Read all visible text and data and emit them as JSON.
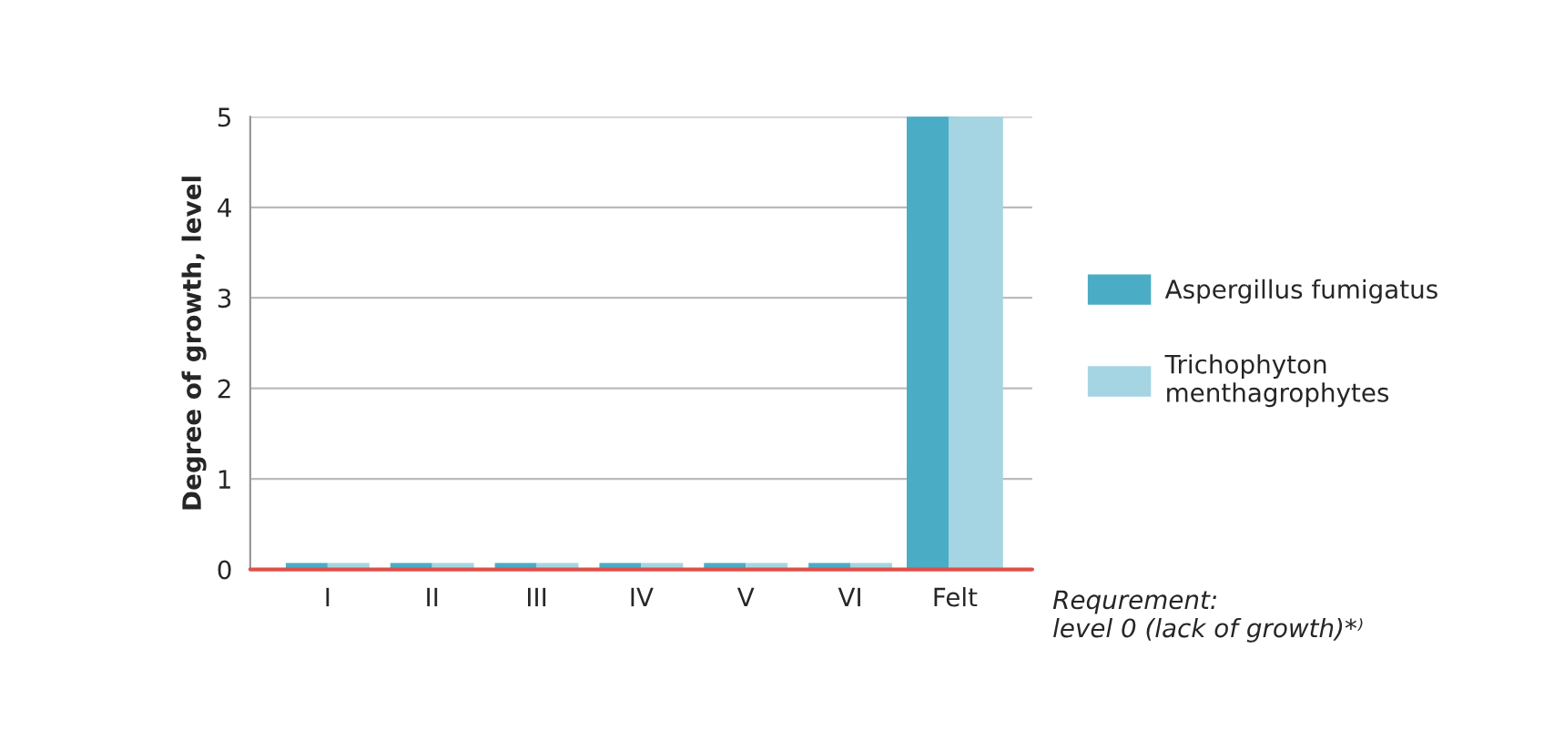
{
  "chart_data": {
    "type": "bar",
    "ylabel": "Degree of growth, level",
    "categories": [
      "I",
      "II",
      "III",
      "IV",
      "V",
      "VI",
      "Felt"
    ],
    "series": [
      {
        "name": "Aspergillus fumigatus",
        "color": "#4bacc6",
        "values": [
          0,
          0,
          0,
          0,
          0,
          0,
          5
        ]
      },
      {
        "name": "Trichophyton menthagrophytes",
        "color": "#a5d5e2",
        "values": [
          0,
          0,
          0,
          0,
          0,
          0,
          5
        ]
      }
    ],
    "ylim": [
      0,
      5
    ],
    "yticks": [
      0,
      1,
      2,
      3,
      4,
      5
    ],
    "grid": "y",
    "legend": "right",
    "ref_lines": [
      {
        "axis": "y",
        "value": 0,
        "label": "Requrement:\nlevel 0 (lack of growth)*⁾",
        "color": "#e0504a"
      }
    ]
  }
}
